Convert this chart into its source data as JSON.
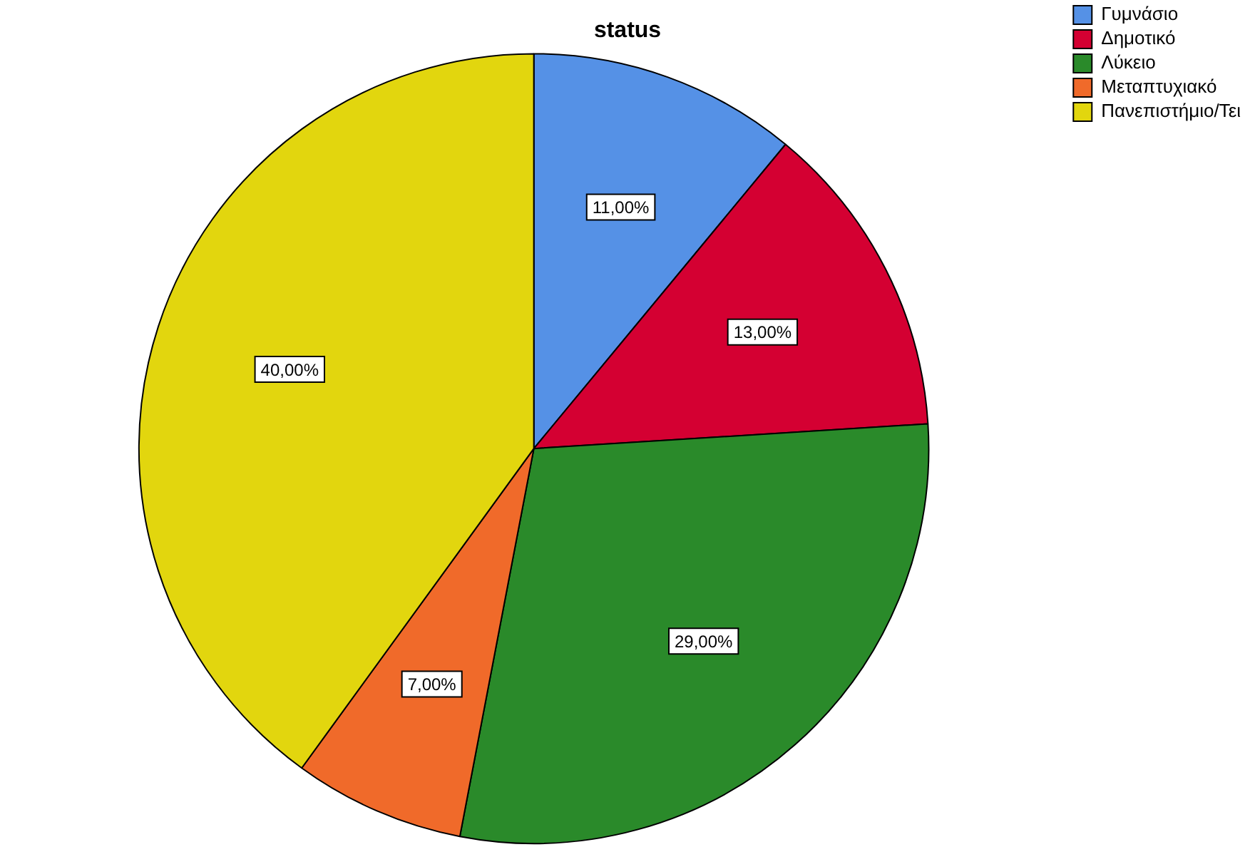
{
  "chart_data": {
    "type": "pie",
    "title": "status",
    "categories": [
      "Γυμνάσιο",
      "Δημοτικό",
      "Λύκειο",
      "Μεταπτυχιακό",
      "Πανεπιστήμιο/Τει"
    ],
    "values": [
      11,
      13,
      29,
      7,
      40
    ],
    "colors": [
      "#5591e6",
      "#d40032",
      "#2a8a2a",
      "#f06a2a",
      "#e2d60e"
    ],
    "value_labels": [
      "11,00%",
      "13,00%",
      "29,00%",
      "7,00%",
      "40,00%"
    ],
    "legend": "top right"
  }
}
